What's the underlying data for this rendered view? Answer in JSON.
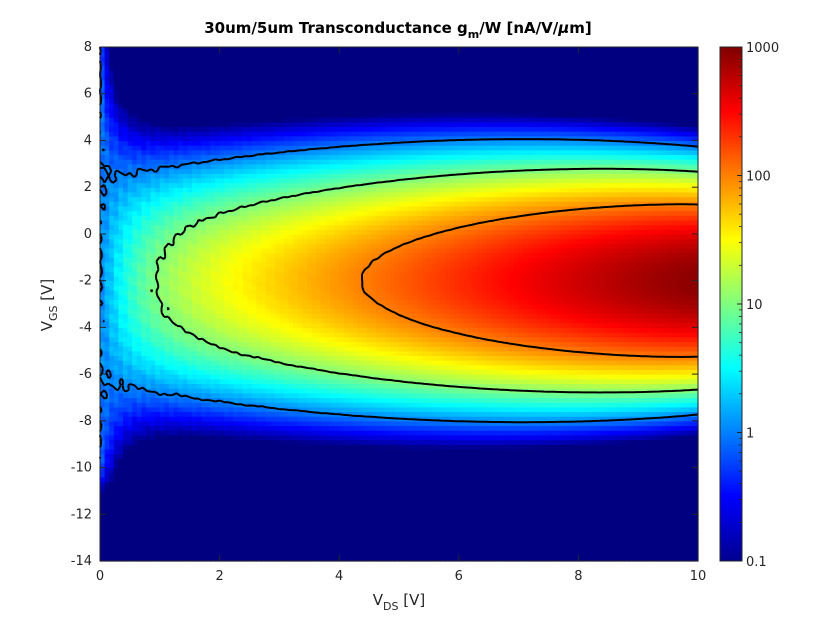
{
  "chart_data": {
    "type": "heatmap",
    "title": {
      "prefix": "30um/5um Transconductance g",
      "sub": "m",
      "suffix": "/W [nA/V/",
      "mu": "μ",
      "end": "m]"
    },
    "xlabel": {
      "main": "V",
      "sub": "DS",
      "unit": " [V]"
    },
    "ylabel": {
      "main": "V",
      "sub": "GS",
      "unit": " [V]"
    },
    "xlim": [
      0,
      10
    ],
    "ylim": [
      -14,
      8
    ],
    "xticks": [
      "0",
      "2",
      "4",
      "6",
      "8",
      "10"
    ],
    "yticks": [
      "-14",
      "-12",
      "-10",
      "-8",
      "-6",
      "-4",
      "-2",
      "0",
      "2",
      "4",
      "6",
      "8"
    ],
    "colorbar": {
      "scale": "log",
      "range": [
        0.1,
        1000
      ],
      "ticks": [
        "0.1",
        "1",
        "10",
        "100",
        "1000"
      ],
      "colormap": "jet"
    },
    "contour_levels": [
      1,
      10,
      100
    ],
    "peak": {
      "vds": 10,
      "vgs": -2,
      "value": 900
    }
  }
}
